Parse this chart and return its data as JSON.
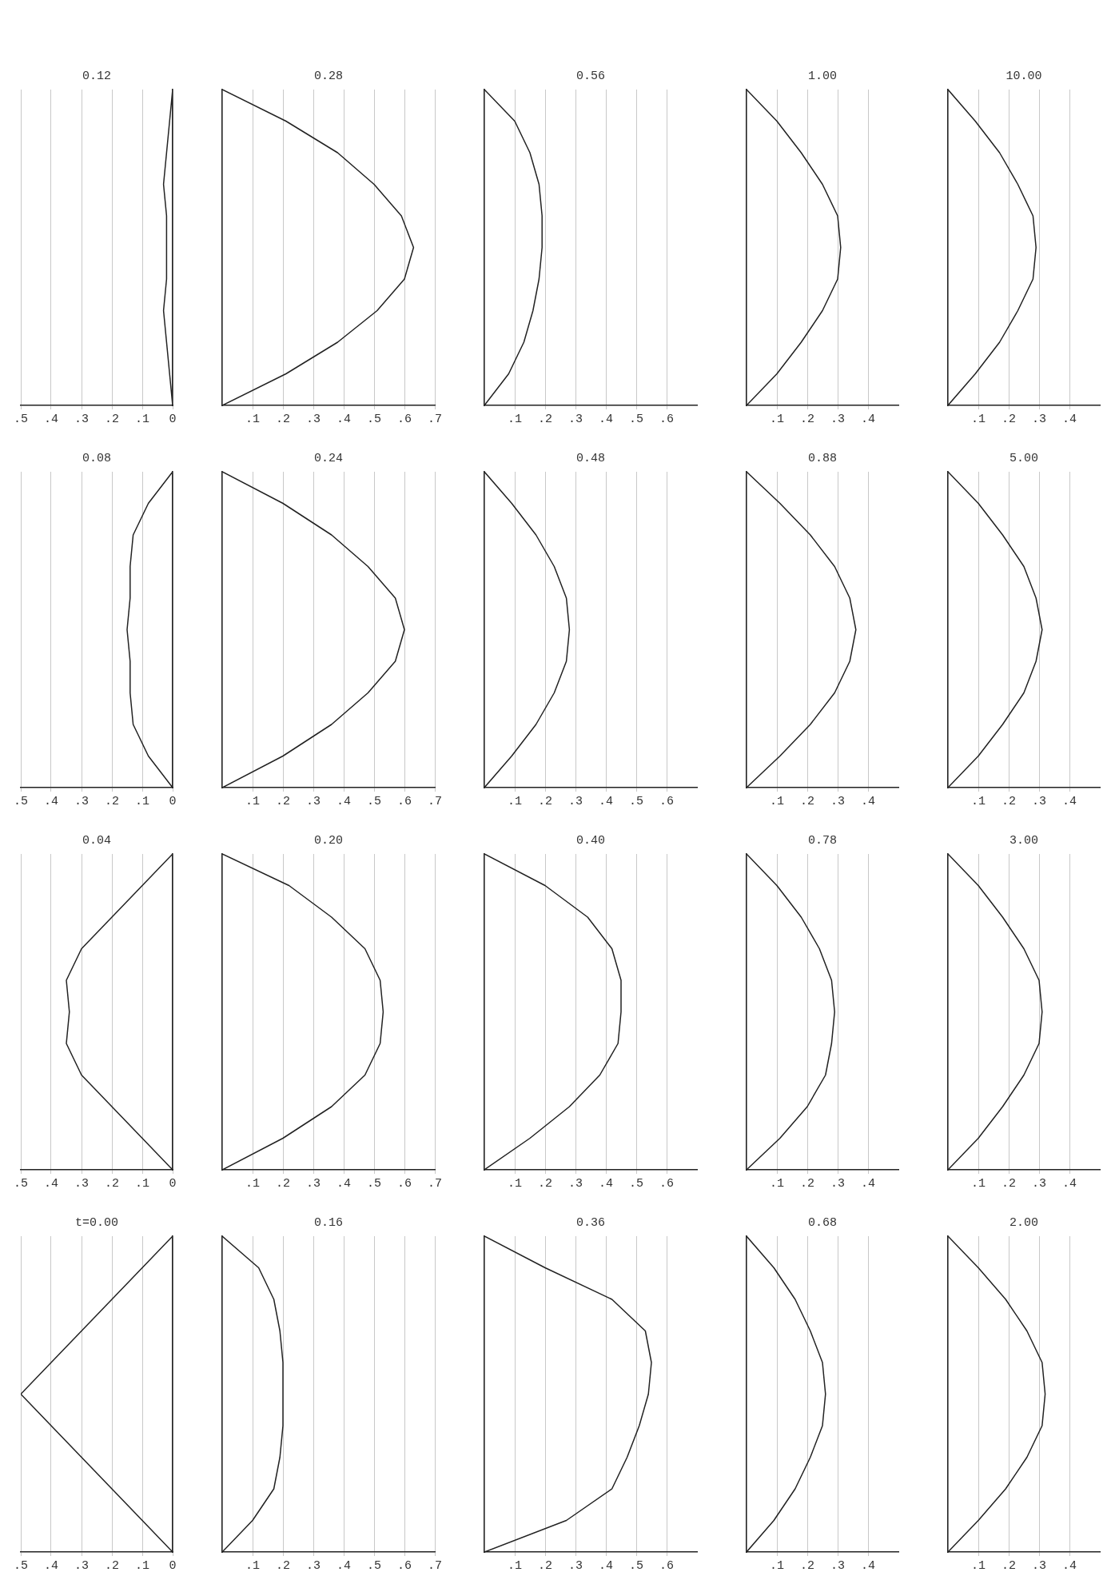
{
  "chart_data": [
    {
      "type": "line",
      "title": "t=0.00",
      "orientation": "horizontal",
      "color": "#222222",
      "grid": "x",
      "categories": [
        null,
        null,
        null,
        null,
        null,
        null,
        null,
        null,
        null,
        null,
        null
      ],
      "values": [
        0,
        0.1,
        0.2,
        0.3,
        0.4,
        0.5,
        0.4,
        0.3,
        0.2,
        0.1,
        0
      ],
      "xlim": [
        0.5,
        0
      ],
      "xticks": [
        {
          "value": 0.5,
          "label": ".5"
        },
        {
          "value": 0.4,
          "label": ".4"
        },
        {
          "value": 0.3,
          "label": ".3"
        },
        {
          "value": 0.2,
          "label": ".2"
        },
        {
          "value": 0.1,
          "label": ".1"
        },
        {
          "value": 0,
          "label": "0"
        }
      ]
    },
    {
      "type": "line",
      "title": "0.04",
      "orientation": "horizontal",
      "color": "#222222",
      "grid": "x",
      "categories": [
        null,
        null,
        null,
        null,
        null,
        null,
        null,
        null,
        null,
        null,
        null
      ],
      "values": [
        0,
        0.1,
        0.2,
        0.3,
        0.35,
        0.34,
        0.35,
        0.3,
        0.2,
        0.1,
        0
      ],
      "xlim": [
        0.5,
        0
      ],
      "xticks": [
        {
          "value": 0.5,
          "label": ".5"
        },
        {
          "value": 0.4,
          "label": ".4"
        },
        {
          "value": 0.3,
          "label": ".3"
        },
        {
          "value": 0.2,
          "label": ".2"
        },
        {
          "value": 0.1,
          "label": ".1"
        },
        {
          "value": 0,
          "label": "0"
        }
      ]
    },
    {
      "type": "line",
      "title": "0.08",
      "orientation": "horizontal",
      "color": "#222222",
      "grid": "x",
      "categories": [
        null,
        null,
        null,
        null,
        null,
        null,
        null,
        null,
        null,
        null,
        null
      ],
      "values": [
        0,
        0.08,
        0.13,
        0.14,
        0.14,
        0.15,
        0.14,
        0.14,
        0.13,
        0.08,
        0
      ],
      "xlim": [
        0.5,
        0
      ],
      "xticks": [
        {
          "value": 0.5,
          "label": ".5"
        },
        {
          "value": 0.4,
          "label": ".4"
        },
        {
          "value": 0.3,
          "label": ".3"
        },
        {
          "value": 0.2,
          "label": ".2"
        },
        {
          "value": 0.1,
          "label": ".1"
        },
        {
          "value": 0,
          "label": "0"
        }
      ]
    },
    {
      "type": "line",
      "title": "0.12",
      "orientation": "horizontal",
      "color": "#222222",
      "grid": "x",
      "categories": [
        null,
        null,
        null,
        null,
        null,
        null,
        null,
        null,
        null,
        null,
        null
      ],
      "values": [
        0,
        0.01,
        0.02,
        0.03,
        0.02,
        0.02,
        0.02,
        0.03,
        0.02,
        0.01,
        0
      ],
      "xlim": [
        0.5,
        0
      ],
      "xticks": [
        {
          "value": 0.5,
          "label": ".5"
        },
        {
          "value": 0.4,
          "label": ".4"
        },
        {
          "value": 0.3,
          "label": ".3"
        },
        {
          "value": 0.2,
          "label": ".2"
        },
        {
          "value": 0.1,
          "label": ".1"
        },
        {
          "value": 0,
          "label": "0"
        }
      ]
    },
    {
      "type": "line",
      "title": "0.16",
      "orientation": "horizontal",
      "color": "#222222",
      "grid": "x",
      "categories": [
        null,
        null,
        null,
        null,
        null,
        null,
        null,
        null,
        null,
        null,
        null
      ],
      "values": [
        0,
        0.12,
        0.17,
        0.19,
        0.2,
        0.2,
        0.2,
        0.19,
        0.17,
        0.1,
        0
      ],
      "xlim": [
        0,
        0.7
      ],
      "xticks": [
        {
          "value": 0.1,
          "label": ".1"
        },
        {
          "value": 0.2,
          "label": ".2"
        },
        {
          "value": 0.3,
          "label": ".3"
        },
        {
          "value": 0.4,
          "label": ".4"
        },
        {
          "value": 0.5,
          "label": ".5"
        },
        {
          "value": 0.6,
          "label": ".6"
        },
        {
          "value": 0.7,
          "label": ".7"
        }
      ]
    },
    {
      "type": "line",
      "title": "0.20",
      "orientation": "horizontal",
      "color": "#222222",
      "grid": "x",
      "categories": [
        null,
        null,
        null,
        null,
        null,
        null,
        null,
        null,
        null,
        null,
        null
      ],
      "values": [
        0,
        0.22,
        0.36,
        0.47,
        0.52,
        0.53,
        0.52,
        0.47,
        0.36,
        0.2,
        0
      ],
      "xlim": [
        0,
        0.7
      ],
      "xticks": [
        {
          "value": 0.1,
          "label": ".1"
        },
        {
          "value": 0.2,
          "label": ".2"
        },
        {
          "value": 0.3,
          "label": ".3"
        },
        {
          "value": 0.4,
          "label": ".4"
        },
        {
          "value": 0.5,
          "label": ".5"
        },
        {
          "value": 0.6,
          "label": ".6"
        },
        {
          "value": 0.7,
          "label": ".7"
        }
      ]
    },
    {
      "type": "line",
      "title": "0.24",
      "orientation": "horizontal",
      "color": "#222222",
      "grid": "x",
      "categories": [
        null,
        null,
        null,
        null,
        null,
        null,
        null,
        null,
        null,
        null,
        null
      ],
      "values": [
        0,
        0.2,
        0.36,
        0.48,
        0.57,
        0.6,
        0.57,
        0.48,
        0.36,
        0.2,
        0
      ],
      "xlim": [
        0,
        0.7
      ],
      "xticks": [
        {
          "value": 0.1,
          "label": ".1"
        },
        {
          "value": 0.2,
          "label": ".2"
        },
        {
          "value": 0.3,
          "label": ".3"
        },
        {
          "value": 0.4,
          "label": ".4"
        },
        {
          "value": 0.5,
          "label": ".5"
        },
        {
          "value": 0.6,
          "label": ".6"
        },
        {
          "value": 0.7,
          "label": ".7"
        }
      ]
    },
    {
      "type": "line",
      "title": "0.28",
      "orientation": "horizontal",
      "color": "#222222",
      "grid": "x",
      "categories": [
        null,
        null,
        null,
        null,
        null,
        null,
        null,
        null,
        null,
        null,
        null
      ],
      "values": [
        0,
        0.21,
        0.38,
        0.5,
        0.59,
        0.63,
        0.6,
        0.51,
        0.38,
        0.21,
        0
      ],
      "xlim": [
        0,
        0.7
      ],
      "xticks": [
        {
          "value": 0.1,
          "label": ".1"
        },
        {
          "value": 0.2,
          "label": ".2"
        },
        {
          "value": 0.3,
          "label": ".3"
        },
        {
          "value": 0.4,
          "label": ".4"
        },
        {
          "value": 0.5,
          "label": ".5"
        },
        {
          "value": 0.6,
          "label": ".6"
        },
        {
          "value": 0.7,
          "label": ".7"
        }
      ]
    },
    {
      "type": "line",
      "title": "0.36",
      "orientation": "horizontal",
      "color": "#222222",
      "grid": "x",
      "categories": [
        null,
        null,
        null,
        null,
        null,
        null,
        null,
        null,
        null,
        null,
        null
      ],
      "values": [
        0,
        0.2,
        0.42,
        0.53,
        0.55,
        0.54,
        0.51,
        0.47,
        0.42,
        0.27,
        0
      ],
      "xlim": [
        0,
        0.7
      ],
      "xticks": [
        {
          "value": 0.1,
          "label": ".1"
        },
        {
          "value": 0.2,
          "label": ".2"
        },
        {
          "value": 0.3,
          "label": ".3"
        },
        {
          "value": 0.4,
          "label": ".4"
        },
        {
          "value": 0.5,
          "label": ".5"
        },
        {
          "value": 0.6,
          "label": ".6"
        }
      ]
    },
    {
      "type": "line",
      "title": "0.40",
      "orientation": "horizontal",
      "color": "#222222",
      "grid": "x",
      "categories": [
        null,
        null,
        null,
        null,
        null,
        null,
        null,
        null,
        null,
        null,
        null
      ],
      "values": [
        0,
        0.2,
        0.34,
        0.42,
        0.45,
        0.45,
        0.44,
        0.38,
        0.28,
        0.15,
        0
      ],
      "xlim": [
        0,
        0.7
      ],
      "xticks": [
        {
          "value": 0.1,
          "label": ".1"
        },
        {
          "value": 0.2,
          "label": ".2"
        },
        {
          "value": 0.3,
          "label": ".3"
        },
        {
          "value": 0.4,
          "label": ".4"
        },
        {
          "value": 0.5,
          "label": ".5"
        },
        {
          "value": 0.6,
          "label": ".6"
        }
      ]
    },
    {
      "type": "line",
      "title": "0.48",
      "orientation": "horizontal",
      "color": "#222222",
      "grid": "x",
      "categories": [
        null,
        null,
        null,
        null,
        null,
        null,
        null,
        null,
        null,
        null,
        null
      ],
      "values": [
        0,
        0.09,
        0.17,
        0.23,
        0.27,
        0.28,
        0.27,
        0.23,
        0.17,
        0.09,
        0
      ],
      "xlim": [
        0,
        0.7
      ],
      "xticks": [
        {
          "value": 0.1,
          "label": ".1"
        },
        {
          "value": 0.2,
          "label": ".2"
        },
        {
          "value": 0.3,
          "label": ".3"
        },
        {
          "value": 0.4,
          "label": ".4"
        },
        {
          "value": 0.5,
          "label": ".5"
        },
        {
          "value": 0.6,
          "label": ".6"
        }
      ]
    },
    {
      "type": "line",
      "title": "0.56",
      "orientation": "horizontal",
      "color": "#222222",
      "grid": "x",
      "categories": [
        null,
        null,
        null,
        null,
        null,
        null,
        null,
        null,
        null,
        null,
        null
      ],
      "values": [
        0,
        0.1,
        0.15,
        0.18,
        0.19,
        0.19,
        0.18,
        0.16,
        0.13,
        0.08,
        0
      ],
      "xlim": [
        0,
        0.7
      ],
      "xticks": [
        {
          "value": 0.1,
          "label": ".1"
        },
        {
          "value": 0.2,
          "label": ".2"
        },
        {
          "value": 0.3,
          "label": ".3"
        },
        {
          "value": 0.4,
          "label": ".4"
        },
        {
          "value": 0.5,
          "label": ".5"
        },
        {
          "value": 0.6,
          "label": ".6"
        }
      ]
    },
    {
      "type": "line",
      "title": "0.68",
      "orientation": "horizontal",
      "color": "#222222",
      "grid": "x",
      "categories": [
        null,
        null,
        null,
        null,
        null,
        null,
        null,
        null,
        null,
        null,
        null
      ],
      "values": [
        0,
        0.09,
        0.16,
        0.21,
        0.25,
        0.26,
        0.25,
        0.21,
        0.16,
        0.09,
        0
      ],
      "xlim": [
        0,
        0.5
      ],
      "xticks": [
        {
          "value": 0.1,
          "label": ".1"
        },
        {
          "value": 0.2,
          "label": ".2"
        },
        {
          "value": 0.3,
          "label": ".3"
        },
        {
          "value": 0.4,
          "label": ".4"
        }
      ]
    },
    {
      "type": "line",
      "title": "0.78",
      "orientation": "horizontal",
      "color": "#222222",
      "grid": "x",
      "categories": [
        null,
        null,
        null,
        null,
        null,
        null,
        null,
        null,
        null,
        null,
        null
      ],
      "values": [
        0,
        0.1,
        0.18,
        0.24,
        0.28,
        0.29,
        0.28,
        0.26,
        0.2,
        0.11,
        0
      ],
      "xlim": [
        0,
        0.5
      ],
      "xticks": [
        {
          "value": 0.1,
          "label": ".1"
        },
        {
          "value": 0.2,
          "label": ".2"
        },
        {
          "value": 0.3,
          "label": ".3"
        },
        {
          "value": 0.4,
          "label": ".4"
        }
      ]
    },
    {
      "type": "line",
      "title": "0.88",
      "orientation": "horizontal",
      "color": "#222222",
      "grid": "x",
      "categories": [
        null,
        null,
        null,
        null,
        null,
        null,
        null,
        null,
        null,
        null,
        null
      ],
      "values": [
        0,
        0.11,
        0.21,
        0.29,
        0.34,
        0.36,
        0.34,
        0.29,
        0.21,
        0.11,
        0
      ],
      "xlim": [
        0,
        0.5
      ],
      "xticks": [
        {
          "value": 0.1,
          "label": ".1"
        },
        {
          "value": 0.2,
          "label": ".2"
        },
        {
          "value": 0.3,
          "label": ".3"
        },
        {
          "value": 0.4,
          "label": ".4"
        }
      ]
    },
    {
      "type": "line",
      "title": "1.00",
      "orientation": "horizontal",
      "color": "#222222",
      "grid": "x",
      "categories": [
        null,
        null,
        null,
        null,
        null,
        null,
        null,
        null,
        null,
        null,
        null
      ],
      "values": [
        0,
        0.1,
        0.18,
        0.25,
        0.3,
        0.31,
        0.3,
        0.25,
        0.18,
        0.1,
        0
      ],
      "xlim": [
        0,
        0.5
      ],
      "xticks": [
        {
          "value": 0.1,
          "label": ".1"
        },
        {
          "value": 0.2,
          "label": ".2"
        },
        {
          "value": 0.3,
          "label": ".3"
        },
        {
          "value": 0.4,
          "label": ".4"
        }
      ]
    },
    {
      "type": "line",
      "title": "2.00",
      "orientation": "horizontal",
      "color": "#222222",
      "grid": "x",
      "categories": [
        null,
        null,
        null,
        null,
        null,
        null,
        null,
        null,
        null,
        null,
        null
      ],
      "values": [
        0,
        0.1,
        0.19,
        0.26,
        0.31,
        0.32,
        0.31,
        0.26,
        0.19,
        0.1,
        0
      ],
      "xlim": [
        0,
        0.5
      ],
      "xticks": [
        {
          "value": 0.1,
          "label": ".1"
        },
        {
          "value": 0.2,
          "label": ".2"
        },
        {
          "value": 0.3,
          "label": ".3"
        },
        {
          "value": 0.4,
          "label": ".4"
        }
      ]
    },
    {
      "type": "line",
      "title": "3.00",
      "orientation": "horizontal",
      "color": "#222222",
      "grid": "x",
      "categories": [
        null,
        null,
        null,
        null,
        null,
        null,
        null,
        null,
        null,
        null,
        null
      ],
      "values": [
        0,
        0.1,
        0.18,
        0.25,
        0.3,
        0.31,
        0.3,
        0.25,
        0.18,
        0.1,
        0
      ],
      "xlim": [
        0,
        0.5
      ],
      "xticks": [
        {
          "value": 0.1,
          "label": ".1"
        },
        {
          "value": 0.2,
          "label": ".2"
        },
        {
          "value": 0.3,
          "label": ".3"
        },
        {
          "value": 0.4,
          "label": ".4"
        }
      ]
    },
    {
      "type": "line",
      "title": "5.00",
      "orientation": "horizontal",
      "color": "#222222",
      "grid": "x",
      "categories": [
        null,
        null,
        null,
        null,
        null,
        null,
        null,
        null,
        null,
        null,
        null
      ],
      "values": [
        0,
        0.1,
        0.18,
        0.25,
        0.29,
        0.31,
        0.29,
        0.25,
        0.18,
        0.1,
        0
      ],
      "xlim": [
        0,
        0.5
      ],
      "xticks": [
        {
          "value": 0.1,
          "label": ".1"
        },
        {
          "value": 0.2,
          "label": ".2"
        },
        {
          "value": 0.3,
          "label": ".3"
        },
        {
          "value": 0.4,
          "label": ".4"
        }
      ]
    },
    {
      "type": "line",
      "title": "10.00",
      "orientation": "horizontal",
      "color": "#222222",
      "grid": "x",
      "categories": [
        null,
        null,
        null,
        null,
        null,
        null,
        null,
        null,
        null,
        null,
        null
      ],
      "values": [
        0,
        0.09,
        0.17,
        0.23,
        0.28,
        0.29,
        0.28,
        0.23,
        0.17,
        0.09,
        0
      ],
      "xlim": [
        0,
        0.5
      ],
      "xticks": [
        {
          "value": 0.1,
          "label": ".1"
        },
        {
          "value": 0.2,
          "label": ".2"
        },
        {
          "value": 0.3,
          "label": ".3"
        },
        {
          "value": 0.4,
          "label": ".4"
        }
      ]
    }
  ]
}
